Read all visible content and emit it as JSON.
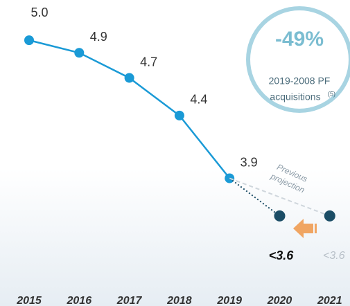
{
  "chart_data": {
    "type": "line",
    "categories": [
      "2015",
      "2016",
      "2017",
      "2018",
      "2019",
      "2020",
      "2021"
    ],
    "series": [
      {
        "color": "#1a9ad6",
        "style": "solid",
        "values": [
          5.0,
          4.9,
          4.7,
          4.4,
          3.9,
          null,
          null
        ],
        "value_labels": [
          "5.0",
          "4.9",
          "4.7",
          "4.4",
          "3.9",
          null,
          null
        ]
      },
      {
        "color": "#1b4d66",
        "style": "dotted",
        "values": [
          null,
          null,
          null,
          null,
          null,
          3.6,
          null
        ],
        "value_labels": [
          null,
          null,
          null,
          null,
          null,
          "<3.6",
          null
        ]
      },
      {
        "color": "#1b4d66",
        "style": "dashed",
        "values": [
          null,
          null,
          null,
          null,
          null,
          null,
          3.6
        ],
        "value_labels": [
          null,
          null,
          null,
          null,
          null,
          null,
          "<3.6"
        ]
      }
    ],
    "ylim": [
      3.5,
      5.1
    ],
    "callout": {
      "title": "-49%",
      "text": [
        "2019-2008 PF",
        "acquisitions"
      ],
      "superscript": "(5)"
    },
    "annotation": [
      "Previous",
      "projection"
    ]
  }
}
